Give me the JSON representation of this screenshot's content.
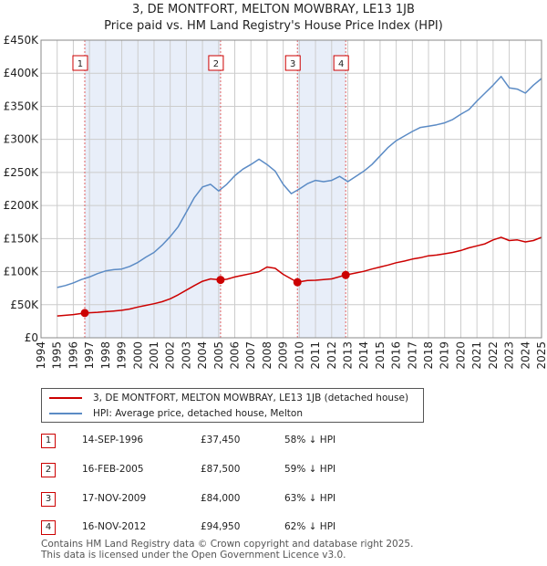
{
  "title_line1": "3, DE MONTFORT, MELTON MOWBRAY, LE13 1JB",
  "title_line2": "Price paid vs. HM Land Registry's House Price Index (HPI)",
  "colors": {
    "red": "#cc0000",
    "blue": "#5b8bc5",
    "band": "#e8eef9",
    "grid": "#cccccc"
  },
  "chart_data": {
    "type": "line",
    "title": "Price paid vs. HM Land Registry's House Price Index (HPI)",
    "xlabel": "",
    "ylabel": "",
    "xlim": [
      1994.0,
      2025.0
    ],
    "ylim": [
      0,
      450000
    ],
    "y_ticks": [
      0,
      50000,
      100000,
      150000,
      200000,
      250000,
      300000,
      350000,
      400000,
      450000
    ],
    "y_tick_labels": [
      "£0",
      "£50K",
      "£100K",
      "£150K",
      "£200K",
      "£250K",
      "£300K",
      "£350K",
      "£400K",
      "£450K"
    ],
    "x_ticks": [
      1994,
      1995,
      1996,
      1997,
      1998,
      1999,
      2000,
      2001,
      2002,
      2003,
      2004,
      2005,
      2006,
      2007,
      2008,
      2009,
      2010,
      2011,
      2012,
      2013,
      2014,
      2015,
      2016,
      2017,
      2018,
      2019,
      2020,
      2021,
      2022,
      2023,
      2024,
      2025
    ],
    "x_tick_labels": [
      "1994",
      "1995",
      "1996",
      "1997",
      "1998",
      "1999",
      "2000",
      "2001",
      "2002",
      "2003",
      "2004",
      "2005",
      "2006",
      "2007",
      "2008",
      "2009",
      "2010",
      "2011",
      "2012",
      "2013",
      "2014",
      "2015",
      "2016",
      "2017",
      "2018",
      "2019",
      "2020",
      "2021",
      "2022",
      "2023",
      "2024",
      "2025"
    ],
    "shaded_ranges": [
      [
        1996.71,
        2005.12
      ],
      [
        2009.88,
        2012.87
      ]
    ],
    "series": [
      {
        "name": "3, DE MONTFORT, MELTON MOWBRAY, LE13 1JB (detached house)",
        "color": "#cc0000",
        "x": [
          1995.0,
          1995.5,
          1996.0,
          1996.71,
          1997.5,
          1998.0,
          1998.5,
          1999.0,
          1999.5,
          2000.0,
          2000.5,
          2001.0,
          2001.5,
          2002.0,
          2002.5,
          2003.0,
          2003.5,
          2004.0,
          2004.5,
          2005.12,
          2005.5,
          2006.0,
          2006.5,
          2007.0,
          2007.5,
          2008.0,
          2008.5,
          2009.0,
          2009.5,
          2009.88,
          2010.5,
          2011.0,
          2011.5,
          2012.0,
          2012.87,
          2013.5,
          2014.0,
          2014.5,
          2015.0,
          2015.5,
          2016.0,
          2016.5,
          2017.0,
          2017.5,
          2018.0,
          2018.5,
          2019.0,
          2019.5,
          2020.0,
          2020.5,
          2021.0,
          2021.5,
          2022.0,
          2022.5,
          2023.0,
          2023.5,
          2024.0,
          2024.5,
          2025.0
        ],
        "values": [
          33000,
          34000,
          35000,
          37450,
          38500,
          39500,
          40500,
          41500,
          43500,
          46500,
          49000,
          51500,
          54500,
          59000,
          65000,
          72000,
          79000,
          85500,
          89000,
          87500,
          88500,
          92000,
          94500,
          97000,
          100000,
          107000,
          105000,
          96000,
          89000,
          84000,
          86500,
          87000,
          88000,
          89000,
          94950,
          98000,
          100500,
          104000,
          107000,
          110000,
          113500,
          116000,
          119000,
          121000,
          124000,
          125000,
          127000,
          129000,
          132000,
          136000,
          139000,
          142000,
          148000,
          152000,
          147000,
          148000,
          145000,
          147000,
          152000
        ]
      },
      {
        "name": "HPI: Average price, detached house, Melton",
        "color": "#5b8bc5",
        "x": [
          1995.0,
          1995.5,
          1996.0,
          1996.5,
          1997.0,
          1997.5,
          1998.0,
          1998.5,
          1999.0,
          1999.5,
          2000.0,
          2000.5,
          2001.0,
          2001.5,
          2002.0,
          2002.5,
          2003.0,
          2003.5,
          2004.0,
          2004.5,
          2005.0,
          2005.5,
          2006.0,
          2006.5,
          2007.0,
          2007.5,
          2008.0,
          2008.5,
          2009.0,
          2009.5,
          2010.0,
          2010.5,
          2011.0,
          2011.5,
          2012.0,
          2012.5,
          2013.0,
          2013.5,
          2014.0,
          2014.5,
          2015.0,
          2015.5,
          2016.0,
          2016.5,
          2017.0,
          2017.5,
          2018.0,
          2018.5,
          2019.0,
          2019.5,
          2020.0,
          2020.5,
          2021.0,
          2021.5,
          2022.0,
          2022.5,
          2023.0,
          2023.5,
          2024.0,
          2024.5,
          2025.0
        ],
        "values": [
          76000,
          79000,
          83000,
          88000,
          92000,
          97000,
          101000,
          103000,
          104000,
          108000,
          114000,
          122000,
          129000,
          140000,
          153000,
          168000,
          190000,
          212000,
          228000,
          232000,
          222000,
          232000,
          245000,
          255000,
          262000,
          270000,
          262000,
          252000,
          232000,
          218000,
          225000,
          233000,
          238000,
          236000,
          238000,
          244000,
          236000,
          244000,
          252000,
          262000,
          275000,
          288000,
          298000,
          305000,
          312000,
          318000,
          320000,
          322000,
          325000,
          330000,
          338000,
          345000,
          358000,
          370000,
          382000,
          395000,
          378000,
          376000,
          370000,
          382000,
          392000
        ]
      }
    ],
    "markers": [
      {
        "label": "1",
        "x": 1996.71,
        "y": 37450
      },
      {
        "label": "2",
        "x": 2005.12,
        "y": 87500
      },
      {
        "label": "3",
        "x": 2009.88,
        "y": 84000
      },
      {
        "label": "4",
        "x": 2012.87,
        "y": 94950
      }
    ]
  },
  "legend": {
    "property_label": "3, DE MONTFORT, MELTON MOWBRAY, LE13 1JB (detached house)",
    "hpi_label": "HPI: Average price, detached house, Melton"
  },
  "sales": [
    {
      "num": "1",
      "date": "14-SEP-1996",
      "price": "£37,450",
      "hpi": "58% ↓ HPI"
    },
    {
      "num": "2",
      "date": "16-FEB-2005",
      "price": "£87,500",
      "hpi": "59% ↓ HPI"
    },
    {
      "num": "3",
      "date": "17-NOV-2009",
      "price": "£84,000",
      "hpi": "63% ↓ HPI"
    },
    {
      "num": "4",
      "date": "16-NOV-2012",
      "price": "£94,950",
      "hpi": "62% ↓ HPI"
    }
  ],
  "footer": {
    "line1": "Contains HM Land Registry data © Crown copyright and database right 2025.",
    "line2": "This data is licensed under the Open Government Licence v3.0."
  }
}
